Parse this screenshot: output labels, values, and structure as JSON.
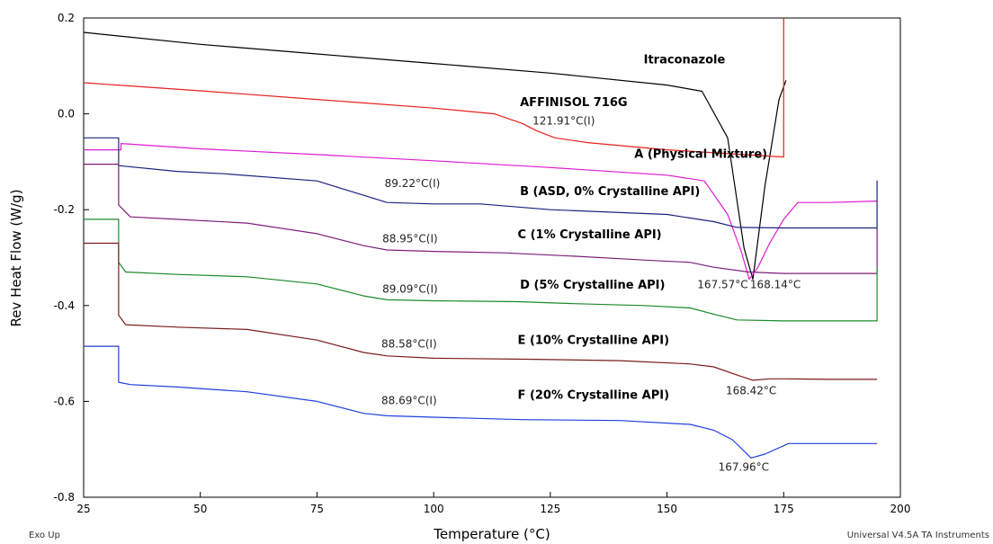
{
  "chart_data": {
    "type": "line",
    "xlabel": "Temperature (°C)",
    "ylabel": "Rev Heat Flow (W/g)",
    "xlim": [
      25,
      200
    ],
    "ylim": [
      -0.8,
      0.2
    ],
    "xticks": [
      "25",
      "50",
      "75",
      "100",
      "125",
      "150",
      "175",
      "200"
    ],
    "yticks": [
      "0.2",
      "0.0",
      "-0.2",
      "-0.4",
      "-0.6",
      "-0.8"
    ],
    "footer_left": "Exo Up",
    "footer_right": "Universal V4.5A TA Instruments",
    "series": [
      {
        "name": "Itraconazole",
        "color": "#000000",
        "x": [
          25,
          50,
          75,
          100,
          125,
          150,
          157.5,
          163,
          166.5,
          168.4,
          171,
          174,
          175.5
        ],
        "y": [
          0.17,
          0.145,
          0.125,
          0.105,
          0.085,
          0.06,
          0.047,
          -0.05,
          -0.28,
          -0.345,
          -0.15,
          0.03,
          0.07
        ]
      },
      {
        "name": "AFFINISOL 716G",
        "color": "#e8201c",
        "x": [
          25,
          50,
          75,
          100,
          113,
          119,
          122,
          126,
          133,
          150,
          175,
          175,
          175,
          175,
          175
        ],
        "y": [
          0.065,
          0.048,
          0.03,
          0.012,
          0.0,
          -0.02,
          -0.035,
          -0.05,
          -0.06,
          -0.075,
          -0.09,
          0.2,
          0.2,
          0.2,
          0.2
        ]
      },
      {
        "name": "A (Physical Mixture)",
        "color": "#e21ad3",
        "x": [
          25,
          33,
          33,
          50,
          75,
          100,
          125,
          150,
          158,
          163,
          166,
          167.6,
          169.5,
          172,
          175,
          178,
          185,
          195
        ],
        "y": [
          -0.075,
          -0.075,
          -0.062,
          -0.073,
          -0.085,
          -0.098,
          -0.112,
          -0.128,
          -0.14,
          -0.21,
          -0.29,
          -0.345,
          -0.32,
          -0.27,
          -0.22,
          -0.185,
          -0.185,
          -0.182
        ]
      },
      {
        "name": "B (ASD, 0% Crystalline API)",
        "color": "#1a237e",
        "x": [
          25,
          32.5,
          32.5,
          45,
          55,
          75,
          85,
          90,
          100,
          110,
          125,
          150,
          160,
          165,
          175,
          195,
          195,
          195
        ],
        "y": [
          -0.05,
          -0.05,
          -0.108,
          -0.12,
          -0.125,
          -0.14,
          -0.17,
          -0.185,
          -0.188,
          -0.188,
          -0.2,
          -0.21,
          -0.225,
          -0.237,
          -0.238,
          -0.238,
          -0.14,
          -0.24
        ]
      },
      {
        "name": "C (1% Crystalline API)",
        "color": "#7b1f7a",
        "x": [
          25,
          32.5,
          32.5,
          35,
          45,
          60,
          75,
          85,
          90,
          100,
          115,
          130,
          145,
          155,
          160,
          167.5,
          175,
          195,
          195
        ],
        "y": [
          -0.105,
          -0.105,
          -0.19,
          -0.215,
          -0.22,
          -0.228,
          -0.25,
          -0.275,
          -0.284,
          -0.287,
          -0.29,
          -0.297,
          -0.305,
          -0.31,
          -0.32,
          -0.33,
          -0.333,
          -0.333,
          -0.24
        ]
      },
      {
        "name": "D (5% Crystalline API)",
        "color": "#1b8a2a",
        "x": [
          25,
          32.5,
          32.5,
          34,
          45,
          60,
          75,
          85,
          90,
          100,
          118,
          130,
          145,
          155,
          160,
          165,
          175,
          195,
          195
        ],
        "y": [
          -0.22,
          -0.22,
          -0.31,
          -0.33,
          -0.335,
          -0.34,
          -0.355,
          -0.38,
          -0.388,
          -0.39,
          -0.392,
          -0.396,
          -0.4,
          -0.405,
          -0.418,
          -0.43,
          -0.432,
          -0.432,
          -0.32
        ]
      },
      {
        "name": "E (10% Crystalline API)",
        "color": "#7a1c1c",
        "x": [
          25,
          32.5,
          32.5,
          34,
          45,
          60,
          75,
          85,
          90,
          100,
          120,
          140,
          155,
          160,
          165,
          168.4,
          172,
          175.5,
          185,
          195
        ],
        "y": [
          -0.27,
          -0.27,
          -0.42,
          -0.44,
          -0.445,
          -0.45,
          -0.472,
          -0.498,
          -0.505,
          -0.51,
          -0.512,
          -0.515,
          -0.522,
          -0.528,
          -0.545,
          -0.556,
          -0.553,
          -0.553,
          -0.554,
          -0.554
        ]
      },
      {
        "name": "F (20% Crystalline API)",
        "color": "#1f3fe0",
        "x": [
          25,
          32.5,
          32.5,
          35,
          45,
          60,
          75,
          85,
          90,
          100,
          119,
          140,
          155,
          160,
          164,
          168,
          171,
          176,
          185,
          195
        ],
        "y": [
          -0.485,
          -0.485,
          -0.56,
          -0.565,
          -0.57,
          -0.58,
          -0.6,
          -0.625,
          -0.63,
          -0.633,
          -0.638,
          -0.64,
          -0.648,
          -0.66,
          -0.68,
          -0.718,
          -0.71,
          -0.688,
          -0.688,
          -0.688
        ]
      }
    ],
    "annotations": [
      {
        "text": "121.91°C(I)",
        "x": 121.2,
        "y": -0.022
      },
      {
        "text": "89.22°C(I)",
        "x": 89.5,
        "y": -0.153
      },
      {
        "text": "88.95°C(I)",
        "x": 89.0,
        "y": -0.268
      },
      {
        "text": "89.09°C(I)",
        "x": 89.0,
        "y": -0.373
      },
      {
        "text": "88.58°C(I)",
        "x": 88.8,
        "y": -0.488
      },
      {
        "text": "88.69°C(I)",
        "x": 88.8,
        "y": -0.606
      },
      {
        "text": "167.57°C",
        "x": 156.5,
        "y": -0.364
      },
      {
        "text": "168.14°C",
        "x": 167.8,
        "y": -0.364
      },
      {
        "text": "168.42°C",
        "x": 162.6,
        "y": -0.585
      },
      {
        "text": "167.96°C",
        "x": 161.0,
        "y": -0.745
      }
    ],
    "series_labels": [
      {
        "text": "Itraconazole",
        "x": 145,
        "y": 0.105
      },
      {
        "text": "AFFINISOL 716G",
        "x": 118.5,
        "y": 0.016
      },
      {
        "text": "A (Physical Mixture)",
        "x": 143,
        "y": -0.092
      },
      {
        "text": "B (ASD, 0% Crystalline API)",
        "x": 118.5,
        "y": -0.17
      },
      {
        "text": "C (1% Crystalline API)",
        "x": 118,
        "y": -0.26
      },
      {
        "text": "D (5% Crystalline API)",
        "x": 118.5,
        "y": -0.365
      },
      {
        "text": "E (10% Crystalline API)",
        "x": 118,
        "y": -0.48
      },
      {
        "text": "F (20% Crystalline API)",
        "x": 118,
        "y": -0.595
      }
    ]
  }
}
